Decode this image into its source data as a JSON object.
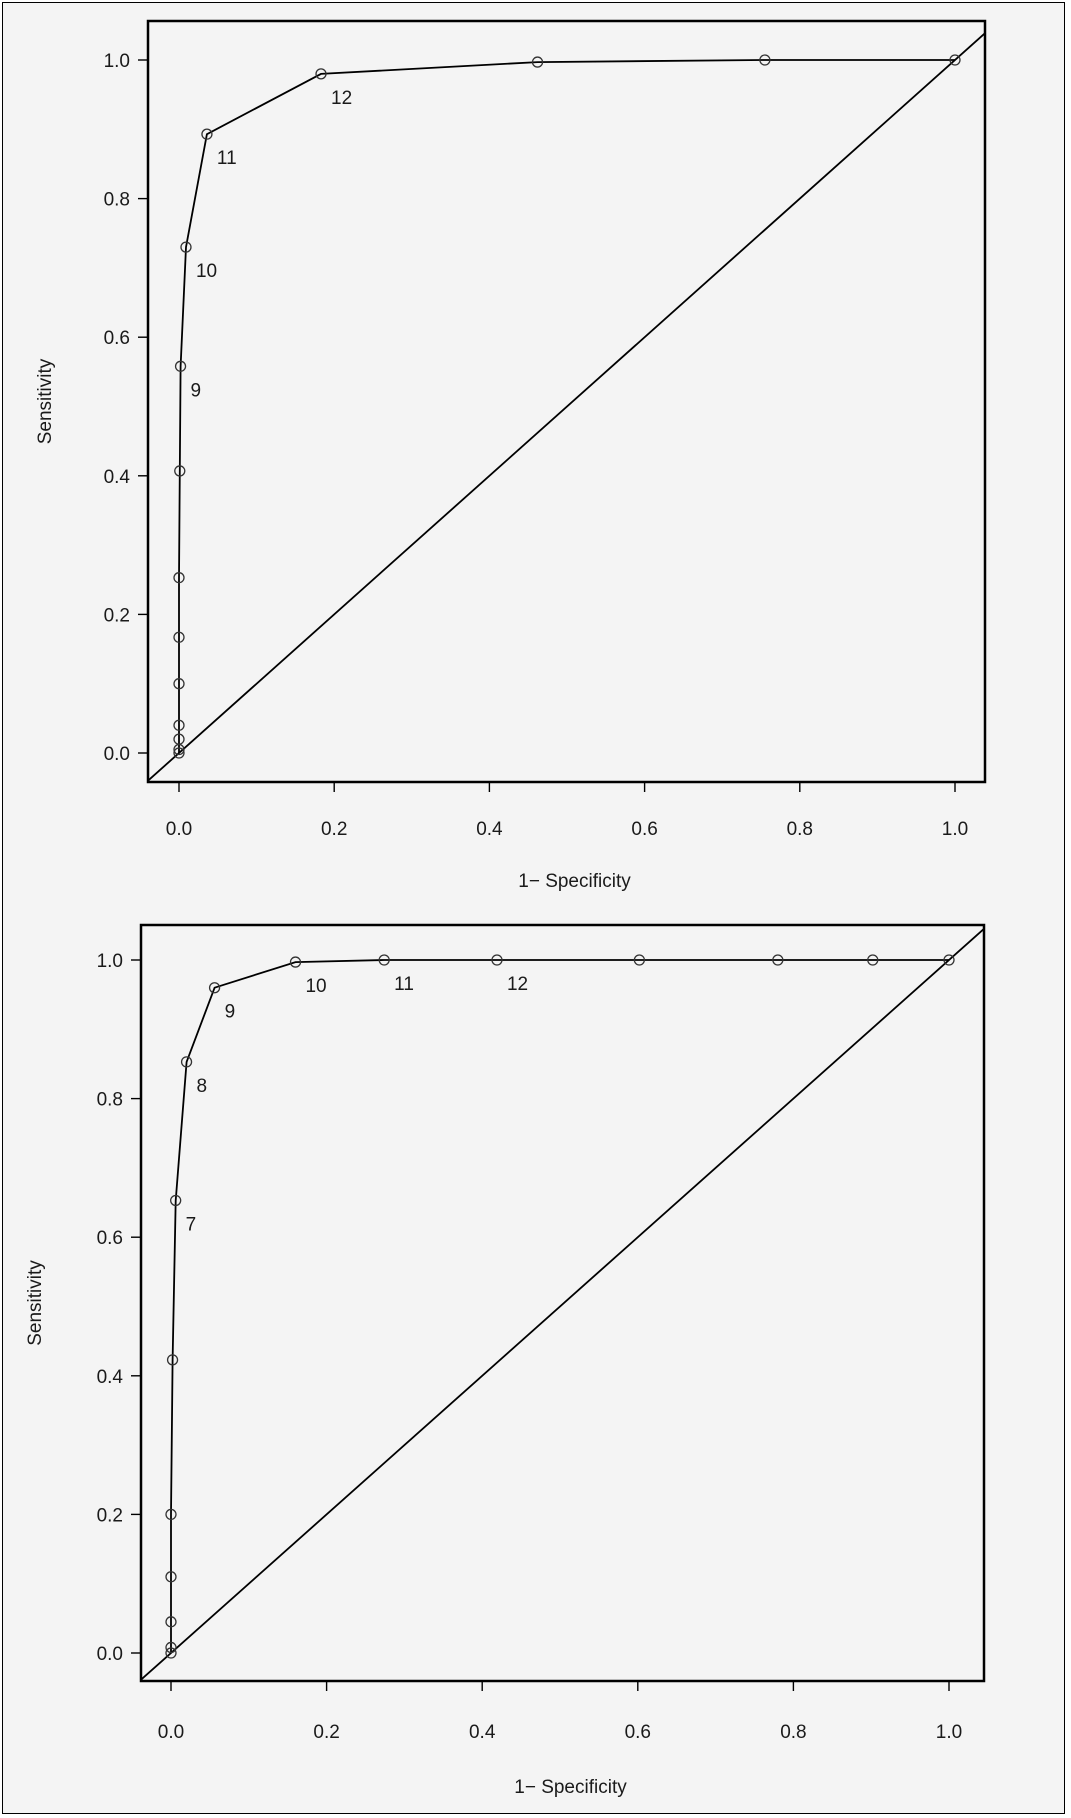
{
  "chart_data": [
    {
      "type": "line",
      "xlabel": "1− Specificity",
      "ylabel": "Sensitivity",
      "xlim": [
        0.0,
        1.0
      ],
      "ylim": [
        0.0,
        1.0
      ],
      "xticks": [
        "0.0",
        "0.2",
        "0.4",
        "0.6",
        "0.8",
        "1.0"
      ],
      "yticks": [
        "0.0",
        "0.2",
        "0.4",
        "0.6",
        "0.8",
        "1.0"
      ],
      "reference_line": "diagonal",
      "grid": false,
      "series": [
        {
          "x": [
            0.0,
            0.0,
            0.0,
            0.0,
            0.0,
            0.0,
            0.0,
            0.001,
            0.002,
            0.009,
            0.036,
            0.183,
            0.462,
            0.755,
            1.0
          ],
          "y": [
            0.0,
            0.005,
            0.02,
            0.04,
            0.1,
            0.167,
            0.253,
            0.407,
            0.558,
            0.73,
            0.893,
            0.98,
            0.997,
            1.0,
            1.0
          ],
          "labels": [
            "",
            "",
            "",
            "",
            "",
            "",
            "",
            "",
            "9",
            "10",
            "11",
            "12",
            "",
            "",
            ""
          ]
        }
      ]
    },
    {
      "type": "line",
      "xlabel": "1− Specificity",
      "ylabel": "Sensitivity",
      "xlim": [
        0.0,
        1.0
      ],
      "ylim": [
        0.0,
        1.0
      ],
      "xticks": [
        "0.0",
        "0.2",
        "0.4",
        "0.6",
        "0.8",
        "1.0"
      ],
      "yticks": [
        "0.0",
        "0.2",
        "0.4",
        "0.6",
        "0.8",
        "1.0"
      ],
      "reference_line": "diagonal",
      "grid": false,
      "series": [
        {
          "x": [
            0.0,
            0.0,
            0.0,
            0.0,
            0.0,
            0.002,
            0.006,
            0.02,
            0.056,
            0.16,
            0.274,
            0.419,
            0.602,
            0.78,
            0.902,
            1.0
          ],
          "y": [
            0.0,
            0.008,
            0.045,
            0.11,
            0.2,
            0.423,
            0.653,
            0.853,
            0.96,
            0.997,
            1.0,
            1.0,
            1.0,
            1.0,
            1.0,
            1.0
          ],
          "labels": [
            "",
            "",
            "",
            "",
            "",
            "",
            "7",
            "8",
            "9",
            "10",
            "11",
            "12",
            "",
            "",
            "",
            ""
          ]
        }
      ]
    }
  ]
}
